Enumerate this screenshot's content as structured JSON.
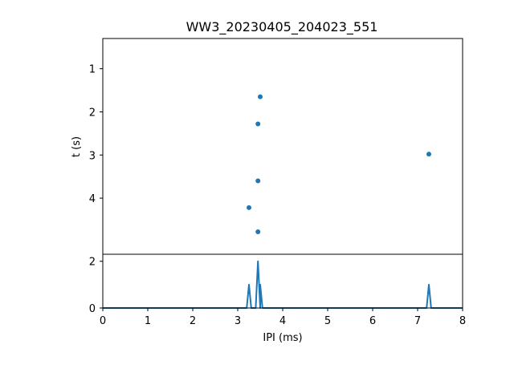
{
  "chart_data": {
    "title": "WW3_20230405_204023_551",
    "colors": {
      "series": "#1f77b4",
      "axes": "#000000",
      "background": "#ffffff"
    },
    "top_panel": {
      "type": "scatter",
      "ylabel": "t (s)",
      "xlim": [
        0,
        8
      ],
      "ylim": [
        5.3,
        0.3
      ],
      "yticks": [
        1,
        2,
        3,
        4
      ],
      "ytick_labels": [
        "1",
        "2",
        "3",
        "4"
      ],
      "points": [
        {
          "x": 3.5,
          "y": 1.65
        },
        {
          "x": 3.45,
          "y": 2.28
        },
        {
          "x": 7.25,
          "y": 2.98
        },
        {
          "x": 3.45,
          "y": 3.6
        },
        {
          "x": 3.25,
          "y": 4.22
        },
        {
          "x": 3.45,
          "y": 4.78
        }
      ]
    },
    "bottom_panel": {
      "type": "line",
      "xlabel": "IPI (ms)",
      "xlim": [
        0,
        8
      ],
      "ylim": [
        0,
        2.3
      ],
      "xticks": [
        0,
        1,
        2,
        3,
        4,
        5,
        6,
        7,
        8
      ],
      "xtick_labels": [
        "0",
        "1",
        "2",
        "3",
        "4",
        "5",
        "6",
        "7",
        "8"
      ],
      "yticks": [
        0,
        2
      ],
      "ytick_labels": [
        "0",
        "2"
      ],
      "x": [
        0,
        3.2,
        3.25,
        3.3,
        3.4,
        3.45,
        3.5,
        3.5,
        3.55,
        7.2,
        7.25,
        7.3,
        8
      ],
      "y": [
        0,
        0,
        1,
        0,
        0,
        2,
        0,
        1,
        0,
        0,
        1,
        0,
        0
      ]
    }
  }
}
